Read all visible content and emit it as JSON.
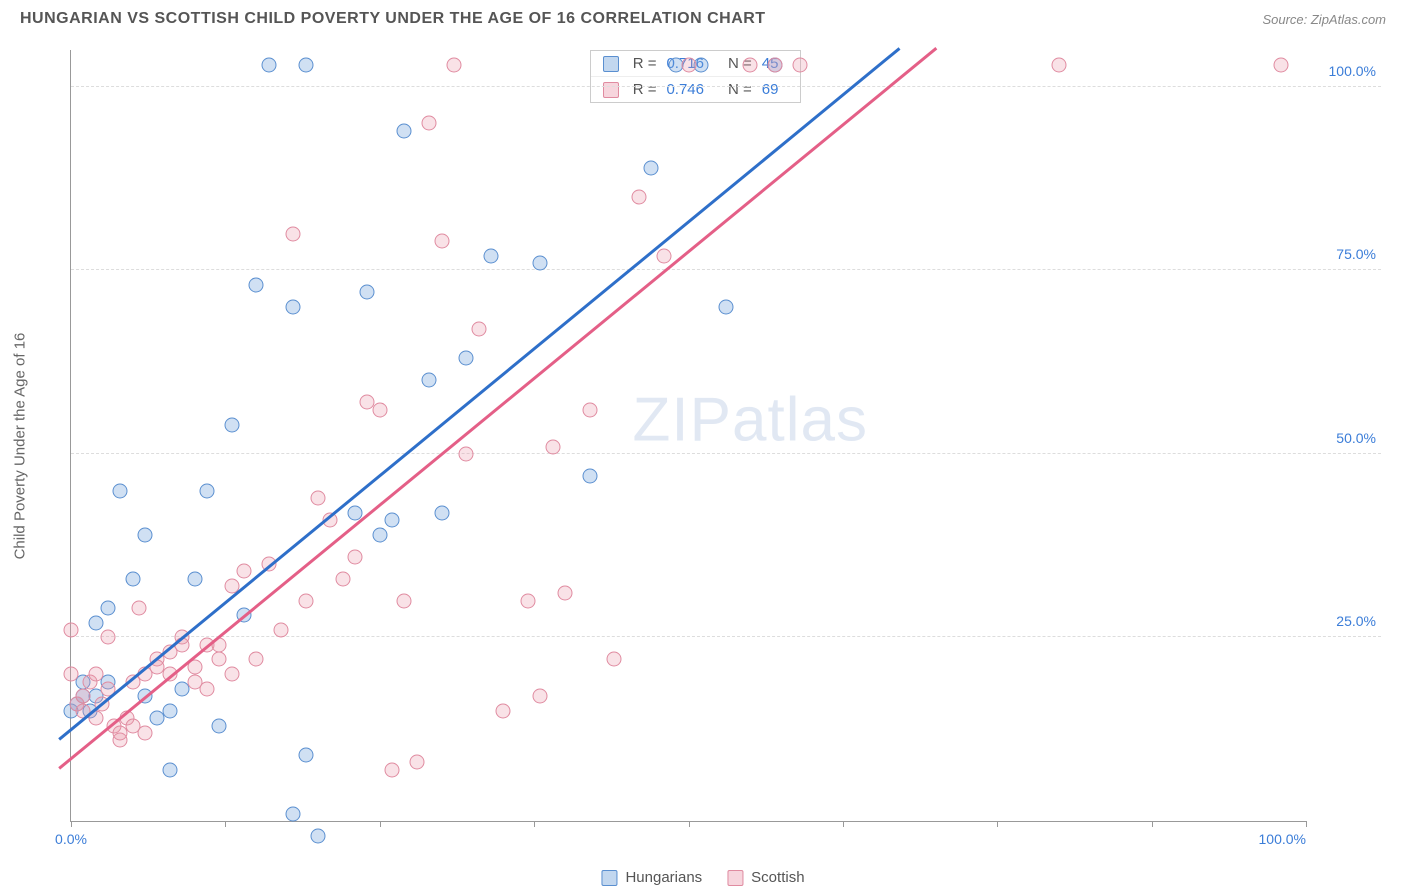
{
  "header": {
    "title": "HUNGARIAN VS SCOTTISH CHILD POVERTY UNDER THE AGE OF 16 CORRELATION CHART",
    "source": "Source: ZipAtlas.com"
  },
  "chart": {
    "type": "scatter",
    "y_axis_label": "Child Poverty Under the Age of 16",
    "watermark": "ZIPatlas",
    "background_color": "#ffffff",
    "grid_color": "#dddddd",
    "axis_color": "#999999",
    "xlim": [
      0,
      100
    ],
    "ylim": [
      0,
      105
    ],
    "y_ticks": [
      25,
      50,
      75,
      100
    ],
    "y_tick_labels": [
      "25.0%",
      "50.0%",
      "75.0%",
      "100.0%"
    ],
    "x_ticks": [
      0,
      12.5,
      25,
      37.5,
      50,
      62.5,
      75,
      87.5,
      100
    ],
    "x_tick_labels_shown": {
      "0": "0.0%",
      "100": "100.0%"
    },
    "marker_size": 15,
    "marker_opacity": 0.35,
    "line_width": 2.5,
    "label_fontsize": 15,
    "tick_fontsize": 14,
    "tick_color": "#3b7dd8",
    "series": [
      {
        "name": "Hungarians",
        "color_fill": "#78a6dc",
        "color_stroke": "#5a8fd0",
        "line_color": "#2e6fc9",
        "R": "0.716",
        "N": "45",
        "trend": {
          "x1": -1,
          "y1": 11,
          "x2": 67,
          "y2": 105
        },
        "points": [
          [
            0,
            15
          ],
          [
            0.5,
            16
          ],
          [
            1,
            17
          ],
          [
            1,
            19
          ],
          [
            1.5,
            15
          ],
          [
            2,
            17
          ],
          [
            2,
            27
          ],
          [
            3,
            19
          ],
          [
            3,
            29
          ],
          [
            4,
            45
          ],
          [
            5,
            33
          ],
          [
            6,
            17
          ],
          [
            6,
            39
          ],
          [
            7,
            14
          ],
          [
            8,
            7
          ],
          [
            8,
            15
          ],
          [
            9,
            18
          ],
          [
            10,
            33
          ],
          [
            11,
            45
          ],
          [
            12,
            13
          ],
          [
            13,
            54
          ],
          [
            14,
            28
          ],
          [
            15,
            73
          ],
          [
            16,
            103
          ],
          [
            18,
            1
          ],
          [
            18,
            70
          ],
          [
            19,
            9
          ],
          [
            19,
            103
          ],
          [
            20,
            -2
          ],
          [
            23,
            42
          ],
          [
            24,
            72
          ],
          [
            25,
            39
          ],
          [
            26,
            41
          ],
          [
            27,
            94
          ],
          [
            29,
            60
          ],
          [
            30,
            42
          ],
          [
            32,
            63
          ],
          [
            34,
            77
          ],
          [
            38,
            76
          ],
          [
            42,
            47
          ],
          [
            47,
            89
          ],
          [
            49,
            103
          ],
          [
            51,
            103
          ],
          [
            53,
            70
          ],
          [
            57,
            103
          ]
        ]
      },
      {
        "name": "Scottish",
        "color_fill": "#eb96aa",
        "color_stroke": "#e08ba0",
        "line_color": "#e45f87",
        "R": "0.746",
        "N": "69",
        "trend": {
          "x1": -1,
          "y1": 7,
          "x2": 70,
          "y2": 105
        },
        "points": [
          [
            0,
            20
          ],
          [
            0,
            26
          ],
          [
            0.5,
            16
          ],
          [
            1,
            15
          ],
          [
            1,
            17
          ],
          [
            1.5,
            19
          ],
          [
            2,
            14
          ],
          [
            2,
            20
          ],
          [
            2.5,
            16
          ],
          [
            3,
            18
          ],
          [
            3,
            25
          ],
          [
            3.5,
            13
          ],
          [
            4,
            11
          ],
          [
            4,
            12
          ],
          [
            4.5,
            14
          ],
          [
            5,
            13
          ],
          [
            5,
            19
          ],
          [
            5.5,
            29
          ],
          [
            6,
            12
          ],
          [
            6,
            20
          ],
          [
            7,
            22
          ],
          [
            7,
            21
          ],
          [
            8,
            23
          ],
          [
            8,
            20
          ],
          [
            9,
            25
          ],
          [
            9,
            24
          ],
          [
            10,
            21
          ],
          [
            10,
            19
          ],
          [
            11,
            18
          ],
          [
            11,
            24
          ],
          [
            12,
            24
          ],
          [
            12,
            22
          ],
          [
            13,
            32
          ],
          [
            13,
            20
          ],
          [
            14,
            34
          ],
          [
            15,
            22
          ],
          [
            16,
            35
          ],
          [
            17,
            26
          ],
          [
            18,
            80
          ],
          [
            19,
            30
          ],
          [
            20,
            44
          ],
          [
            21,
            41
          ],
          [
            22,
            33
          ],
          [
            23,
            36
          ],
          [
            24,
            57
          ],
          [
            25,
            56
          ],
          [
            26,
            7
          ],
          [
            27,
            30
          ],
          [
            28,
            8
          ],
          [
            29,
            95
          ],
          [
            30,
            79
          ],
          [
            31,
            103
          ],
          [
            32,
            50
          ],
          [
            33,
            67
          ],
          [
            35,
            15
          ],
          [
            37,
            30
          ],
          [
            38,
            17
          ],
          [
            39,
            51
          ],
          [
            40,
            31
          ],
          [
            42,
            56
          ],
          [
            44,
            22
          ],
          [
            46,
            85
          ],
          [
            48,
            77
          ],
          [
            50,
            103
          ],
          [
            55,
            103
          ],
          [
            57,
            103
          ],
          [
            59,
            103
          ],
          [
            80,
            103
          ],
          [
            98,
            103
          ]
        ]
      }
    ],
    "stats_box": {
      "rows": [
        {
          "swatch": "blue",
          "r_label": "R =",
          "r_val": "0.716",
          "n_label": "N =",
          "n_val": "45"
        },
        {
          "swatch": "pink",
          "r_label": "R =",
          "r_val": "0.746",
          "n_label": "N =",
          "n_val": "69"
        }
      ]
    },
    "bottom_legend": [
      {
        "swatch": "blue",
        "label": "Hungarians"
      },
      {
        "swatch": "pink",
        "label": "Scottish"
      }
    ]
  }
}
